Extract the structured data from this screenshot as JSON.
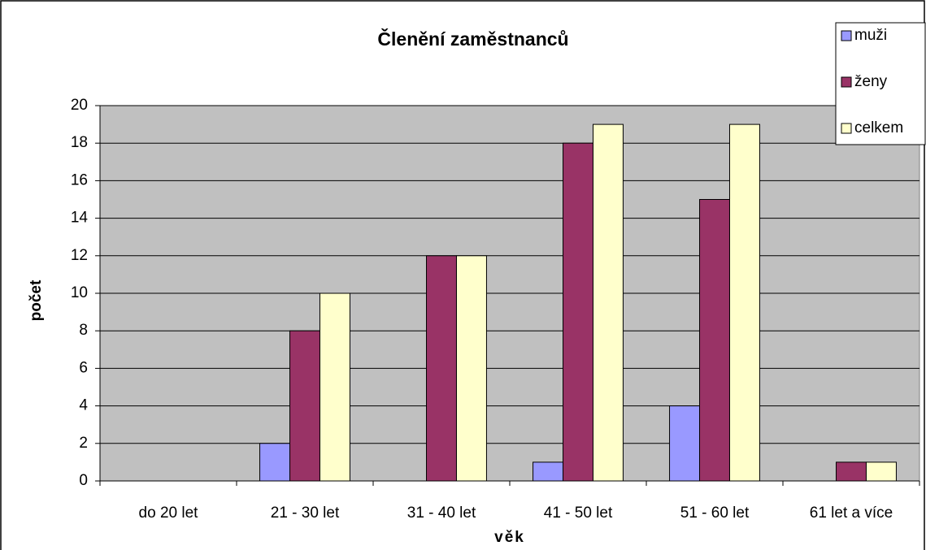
{
  "chart_data": {
    "type": "bar",
    "title": "Členění zaměstnanců",
    "x_label": "věk",
    "y_label": "počet",
    "categories": [
      "do 20 let",
      "21 - 30 let",
      "31 - 40 let",
      "41 - 50 let",
      "51 - 60 let",
      "61 let a více"
    ],
    "series": [
      {
        "name": "muži",
        "color": "#9999ff",
        "values": [
          0,
          2,
          0,
          1,
          4,
          0
        ]
      },
      {
        "name": "ženy",
        "color": "#993366",
        "values": [
          0,
          8,
          12,
          18,
          15,
          1
        ]
      },
      {
        "name": "celkem",
        "color": "#ffffcc",
        "values": [
          0,
          10,
          12,
          19,
          19,
          1
        ]
      }
    ],
    "ylim": [
      0,
      20
    ],
    "yticks": [
      0,
      2,
      4,
      6,
      8,
      10,
      12,
      14,
      16,
      18,
      20
    ],
    "grid": true,
    "legend": "top-right",
    "plot_background": "#c0c0c0"
  }
}
